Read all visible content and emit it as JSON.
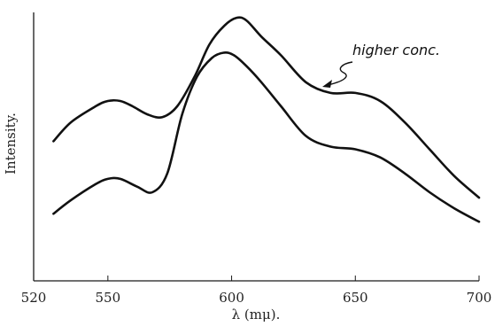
{
  "chart_data": {
    "type": "line",
    "xlabel": "λ (mμ).",
    "ylabel": "Intensity.",
    "xlim": [
      520,
      700
    ],
    "ylim": [
      0,
      1
    ],
    "x_ticks": [
      520,
      550,
      600,
      650,
      700
    ],
    "x_tick_labels": [
      "520",
      "550",
      "600",
      "650",
      "700"
    ],
    "grid": false,
    "annotations": [
      {
        "text": "higher conc.",
        "points_to_series": 0,
        "at_x": 640
      }
    ],
    "series": [
      {
        "x": [
          528,
          535,
          545,
          550,
          555,
          560,
          566,
          572,
          578,
          585,
          591,
          597,
          602,
          606,
          612,
          620,
          630,
          640,
          650,
          660,
          670,
          680,
          690,
          700
        ],
        "y": [
          0.52,
          0.59,
          0.65,
          0.67,
          0.67,
          0.65,
          0.62,
          0.61,
          0.65,
          0.76,
          0.88,
          0.95,
          0.98,
          0.97,
          0.91,
          0.84,
          0.74,
          0.7,
          0.7,
          0.67,
          0.59,
          0.49,
          0.39,
          0.31
        ]
      },
      {
        "x": [
          528,
          535,
          545,
          550,
          555,
          562,
          568,
          574,
          580,
          586,
          592,
          597,
          601,
          606,
          612,
          620,
          630,
          640,
          650,
          660,
          670,
          680,
          690,
          700
        ],
        "y": [
          0.25,
          0.3,
          0.36,
          0.38,
          0.38,
          0.35,
          0.33,
          0.4,
          0.62,
          0.76,
          0.83,
          0.85,
          0.84,
          0.8,
          0.74,
          0.65,
          0.54,
          0.5,
          0.49,
          0.46,
          0.4,
          0.33,
          0.27,
          0.22
        ]
      }
    ]
  }
}
